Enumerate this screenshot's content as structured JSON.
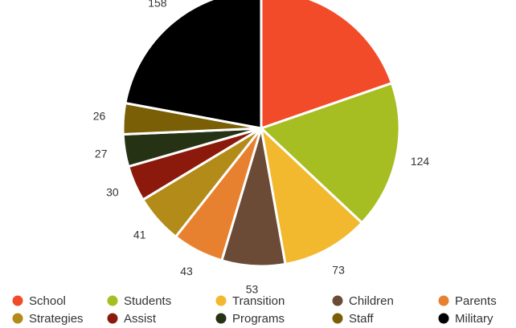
{
  "chart_data": {
    "type": "pie",
    "title": "",
    "legend_position": "bottom",
    "slices": [
      {
        "label": "School",
        "value": 141,
        "color": "#f24b2a"
      },
      {
        "label": "Students",
        "value": 124,
        "color": "#a6be22"
      },
      {
        "label": "Transition",
        "value": 73,
        "color": "#f2b82e"
      },
      {
        "label": "Children",
        "value": 53,
        "color": "#6b4a36"
      },
      {
        "label": "Parents",
        "value": 43,
        "color": "#e8812f"
      },
      {
        "label": "Strategies",
        "value": 41,
        "color": "#b38b19"
      },
      {
        "label": "Assist",
        "value": 30,
        "color": "#8c1a0c"
      },
      {
        "label": "Programs",
        "value": 27,
        "color": "#253314"
      },
      {
        "label": "Staff",
        "value": 26,
        "color": "#7a5f06"
      },
      {
        "label": "Military",
        "value": 158,
        "color": "#000000"
      }
    ]
  }
}
